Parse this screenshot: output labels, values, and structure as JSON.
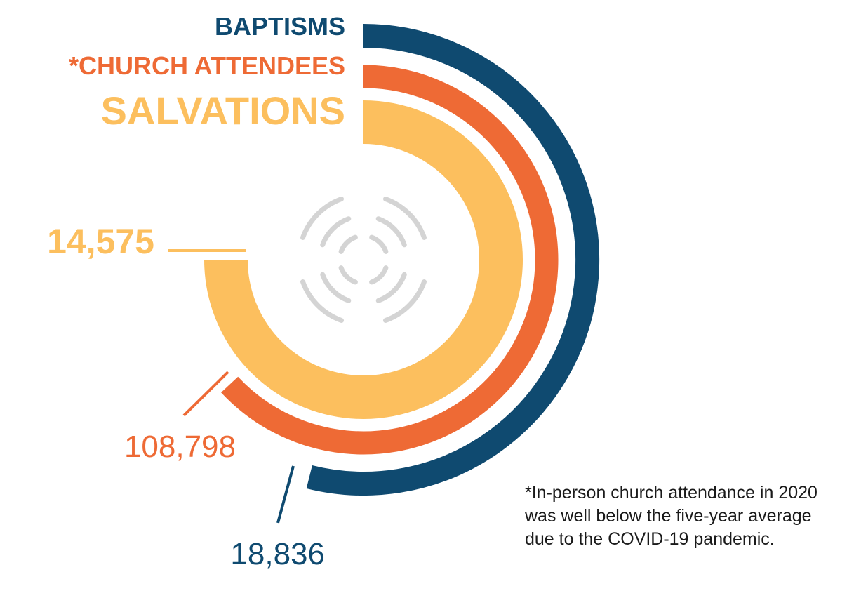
{
  "colors": {
    "baptisms": "#0f4a70",
    "church_attendees": "#ee6a35",
    "salvations": "#fcbf5e",
    "icon": "#d4d4d4"
  },
  "chart_data": {
    "type": "radial-bar",
    "series": [
      {
        "name": "BAPTISMS",
        "value": 18836,
        "value_label": "18,836",
        "color": "#0f4a70"
      },
      {
        "name": "*CHURCH ATTENDEES",
        "value": 108798,
        "value_label": "108,798",
        "color": "#ee6a35"
      },
      {
        "name": "SALVATIONS",
        "value": 14575,
        "value_label": "14,575",
        "color": "#fcbf5e"
      }
    ]
  },
  "center_icon": "sound-wave-icon",
  "footnote": {
    "line1": "*In-person church attendance in 2020",
    "line2": "was well below the five-year average",
    "line3": "due to the COVID-19 pandemic."
  }
}
